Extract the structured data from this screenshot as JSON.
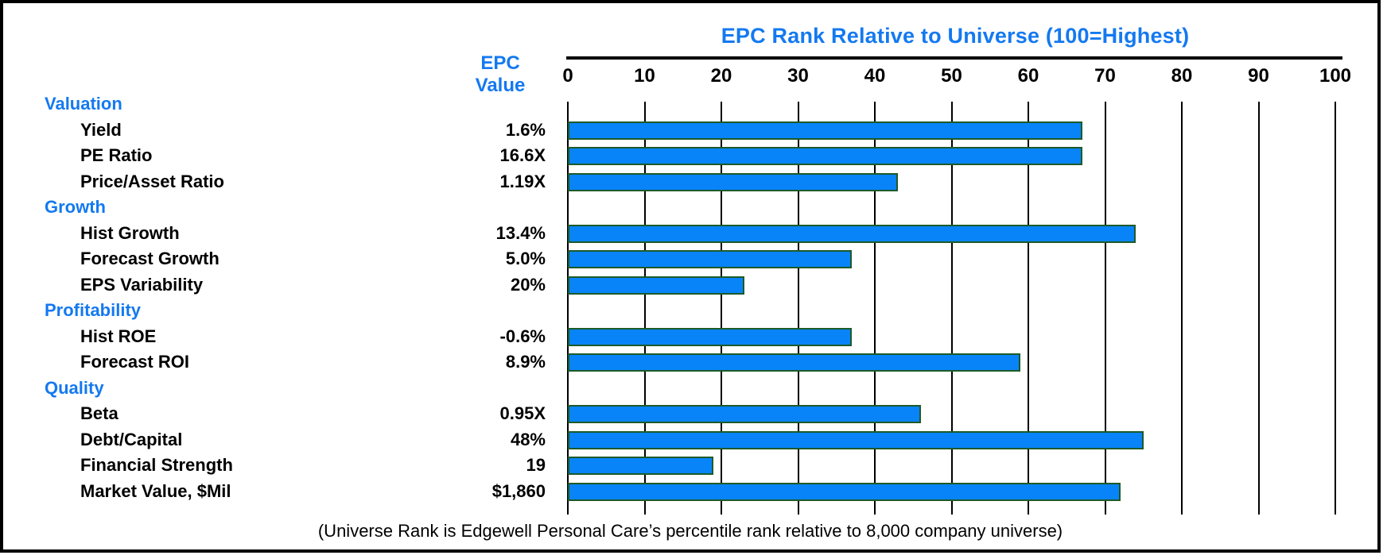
{
  "title": "EPC Rank Relative to Universe (100=Highest)",
  "value_header": {
    "line1": "EPC",
    "line2": "Value"
  },
  "caption": "(Universe Rank is Edgewell Personal Care’s percentile rank relative to 8,000 company universe)",
  "colors": {
    "accent_blue": "#1479F0",
    "bar_fill": "#0884F8",
    "bar_border": "#1E5A28",
    "axis_black": "#000000",
    "background": "#FFFFFF"
  },
  "chart_data": {
    "type": "bar",
    "orientation": "horizontal",
    "title": "EPC Rank Relative to Universe (100=Highest)",
    "value_column_header": "EPC Value",
    "xlabel": "",
    "ylabel": "",
    "xlim": [
      0,
      100
    ],
    "x_ticks": [
      0,
      10,
      20,
      30,
      40,
      50,
      60,
      70,
      80,
      90,
      100
    ],
    "grid": "vertical",
    "legend": "none",
    "rows": [
      {
        "kind": "header",
        "label": "Valuation"
      },
      {
        "kind": "item",
        "label": "Yield",
        "epc_value": "1.6%",
        "rank": 67
      },
      {
        "kind": "item",
        "label": "PE Ratio",
        "epc_value": "16.6X",
        "rank": 67
      },
      {
        "kind": "item",
        "label": "Price/Asset Ratio",
        "epc_value": "1.19X",
        "rank": 43
      },
      {
        "kind": "header",
        "label": "Growth"
      },
      {
        "kind": "item",
        "label": "Hist Growth",
        "epc_value": "13.4%",
        "rank": 74
      },
      {
        "kind": "item",
        "label": "Forecast Growth",
        "epc_value": "5.0%",
        "rank": 37
      },
      {
        "kind": "item",
        "label": "EPS Variability",
        "epc_value": "20%",
        "rank": 23
      },
      {
        "kind": "header",
        "label": "Profitability"
      },
      {
        "kind": "item",
        "label": "Hist ROE",
        "epc_value": "-0.6%",
        "rank": 37
      },
      {
        "kind": "item",
        "label": "Forecast ROI",
        "epc_value": "8.9%",
        "rank": 59
      },
      {
        "kind": "header",
        "label": "Quality"
      },
      {
        "kind": "item",
        "label": "Beta",
        "epc_value": "0.95X",
        "rank": 46
      },
      {
        "kind": "item",
        "label": "Debt/Capital",
        "epc_value": "48%",
        "rank": 75
      },
      {
        "kind": "item",
        "label": "Financial Strength",
        "epc_value": "19",
        "rank": 19
      },
      {
        "kind": "item",
        "label": "Market Value, $Mil",
        "epc_value": "$1,860",
        "rank": 72
      }
    ]
  }
}
